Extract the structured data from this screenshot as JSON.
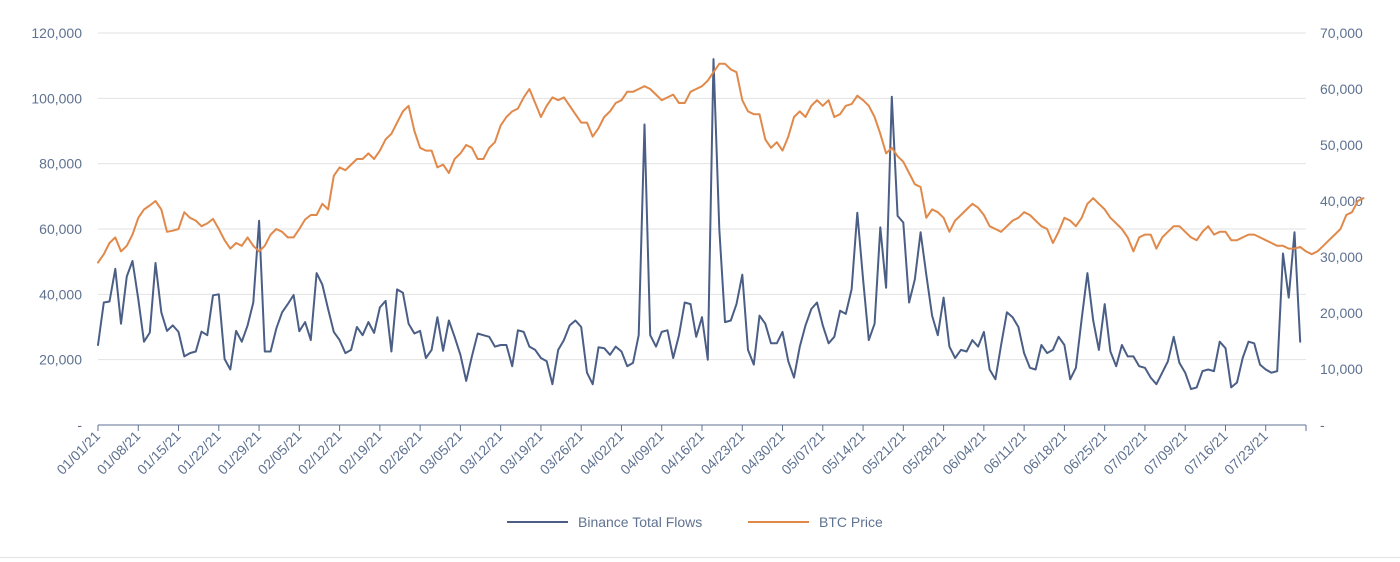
{
  "chart_data": {
    "type": "line",
    "title": "",
    "xlabel": "",
    "ylabel": "",
    "y2label": "",
    "grid": "horizontal",
    "legend_position": "bottom",
    "ylim": [
      0,
      120000
    ],
    "y2lim": [
      0,
      70000
    ],
    "left_tick_labels": [
      "-",
      "20,000",
      "40,000",
      "60,000",
      "80,000",
      "100,000",
      "120,000"
    ],
    "left_tick_values": [
      0,
      20000,
      40000,
      60000,
      80000,
      100000,
      120000
    ],
    "right_tick_labels": [
      "-",
      "10,000",
      "20,000",
      "30,000",
      "40,000",
      "50,000",
      "60,000",
      "70,000"
    ],
    "right_tick_values": [
      0,
      10000,
      20000,
      30000,
      40000,
      50000,
      60000,
      70000
    ],
    "x_tick_labels": [
      "01/01/21",
      "01/08/21",
      "01/15/21",
      "01/22/21",
      "01/29/21",
      "02/05/21",
      "02/12/21",
      "02/19/21",
      "02/26/21",
      "03/05/21",
      "03/12/21",
      "03/19/21",
      "03/26/21",
      "04/02/21",
      "04/09/21",
      "04/16/21",
      "04/23/21",
      "04/30/21",
      "05/07/21",
      "05/14/21",
      "05/21/21",
      "05/28/21",
      "06/04/21",
      "06/11/21",
      "06/18/21",
      "06/25/21",
      "07/02/21",
      "07/09/21",
      "07/16/21",
      "07/23/21"
    ],
    "x_days": 211,
    "series": [
      {
        "name": "Binance Total Flows",
        "axis": "left",
        "color": "#4b5f86",
        "values": [
          24500,
          37500,
          37800,
          47800,
          31000,
          45500,
          50200,
          38500,
          25500,
          28300,
          49600,
          34500,
          28800,
          30500,
          28500,
          21000,
          22000,
          22500,
          28600,
          27500,
          39700,
          40000,
          20200,
          17000,
          28800,
          25500,
          30500,
          37500,
          62500,
          22500,
          22500,
          29500,
          34500,
          37000,
          39800,
          28700,
          31500,
          26000,
          46500,
          43000,
          35500,
          28500,
          26000,
          22000,
          23000,
          30000,
          27500,
          31500,
          28200,
          36000,
          38000,
          22500,
          41500,
          40500,
          31000,
          28000,
          28800,
          20500,
          23000,
          33000,
          22700,
          32000,
          27000,
          21500,
          13500,
          21000,
          28000,
          27500,
          27000,
          24000,
          24500,
          24500,
          18000,
          29000,
          28500,
          24000,
          23000,
          20500,
          19500,
          12500,
          23000,
          26000,
          30500,
          32000,
          30000,
          16000,
          12500,
          23800,
          23500,
          21500,
          24000,
          22500,
          18000,
          19000,
          27500,
          92000,
          27500,
          24000,
          28500,
          29000,
          20500,
          27500,
          37500,
          37000,
          27000,
          33000,
          20000,
          112000,
          60000,
          31500,
          32000,
          37000,
          46000,
          23000,
          18500,
          33500,
          31000,
          25000,
          25000,
          28500,
          19500,
          14500,
          24000,
          30500,
          35500,
          37500,
          30500,
          25000,
          27000,
          35000,
          34000,
          41500,
          65000,
          44500,
          26000,
          31000,
          60500,
          42000,
          100500,
          64000,
          62000,
          37500,
          44500,
          59000,
          46000,
          33500,
          27500,
          39000,
          24000,
          20500,
          23000,
          22500,
          26000,
          24000,
          28500,
          17000,
          14000,
          24500,
          34500,
          33000,
          30000,
          22000,
          17500,
          17000,
          24500,
          22000,
          23000,
          27000,
          24500,
          14000,
          17500,
          32500,
          46500,
          32000,
          23000,
          37000,
          22500,
          18000,
          24500,
          21000,
          21000,
          18000,
          17500,
          14500,
          12500,
          16000,
          19500,
          27000,
          19000,
          16000,
          11000,
          11500,
          16500,
          17000,
          16500,
          25500,
          23500,
          11500,
          13000,
          20500,
          25500,
          25000,
          18500,
          17000,
          16000,
          16500,
          52500,
          39000,
          59000,
          25500
        ]
      },
      {
        "name": "BTC Price",
        "axis": "right",
        "color": "#e1894a",
        "values": [
          29000,
          30500,
          32500,
          33500,
          31000,
          32000,
          34000,
          37000,
          38500,
          39200,
          40000,
          38500,
          34500,
          34700,
          35000,
          38000,
          37000,
          36500,
          35500,
          36000,
          36800,
          35000,
          33000,
          31500,
          32500,
          32000,
          33500,
          32000,
          31000,
          32000,
          34000,
          35000,
          34500,
          33500,
          33500,
          35000,
          36700,
          37500,
          37500,
          39500,
          38500,
          44500,
          46000,
          45500,
          46500,
          47500,
          47500,
          48500,
          47500,
          49000,
          51000,
          52000,
          54000,
          56000,
          57000,
          52500,
          49500,
          49000,
          49000,
          46000,
          46500,
          45000,
          47500,
          48500,
          50000,
          49500,
          47500,
          47500,
          49500,
          50500,
          53500,
          55000,
          56000,
          56500,
          58500,
          60000,
          57500,
          55000,
          57000,
          58500,
          58000,
          58500,
          57000,
          55500,
          54000,
          54000,
          51500,
          53000,
          55000,
          56000,
          57500,
          58000,
          59500,
          59500,
          60000,
          60500,
          60000,
          59000,
          58000,
          58500,
          59000,
          57500,
          57500,
          59500,
          60000,
          60500,
          61500,
          63000,
          64500,
          64500,
          63500,
          63000,
          58000,
          56000,
          55500,
          55500,
          51000,
          49500,
          50500,
          49000,
          51500,
          55000,
          56000,
          55000,
          57000,
          58000,
          57000,
          58000,
          55000,
          55500,
          57000,
          57300,
          58800,
          58000,
          57000,
          55000,
          52000,
          48500,
          49500,
          48000,
          47000,
          45000,
          43000,
          42500,
          37000,
          38500,
          38000,
          37000,
          34500,
          36500,
          37500,
          38500,
          39500,
          38800,
          37500,
          35500,
          35000,
          34500,
          35500,
          36500,
          37000,
          38000,
          37500,
          36500,
          35500,
          35000,
          32500,
          34500,
          37000,
          36500,
          35500,
          37000,
          39500,
          40500,
          39500,
          38500,
          37000,
          36000,
          35000,
          33500,
          31000,
          33500,
          34000,
          34000,
          31500,
          33500,
          34500,
          35500,
          35500,
          34500,
          33500,
          33000,
          34500,
          35500,
          34000,
          34500,
          34500,
          33000,
          33000,
          33500,
          34000,
          34000,
          33500,
          33000,
          32500,
          32000,
          32000,
          31500,
          31500,
          31800,
          31000,
          30500,
          31000,
          32000,
          33000,
          34000,
          35000,
          37500,
          38000,
          40000,
          40500
        ]
      }
    ]
  }
}
